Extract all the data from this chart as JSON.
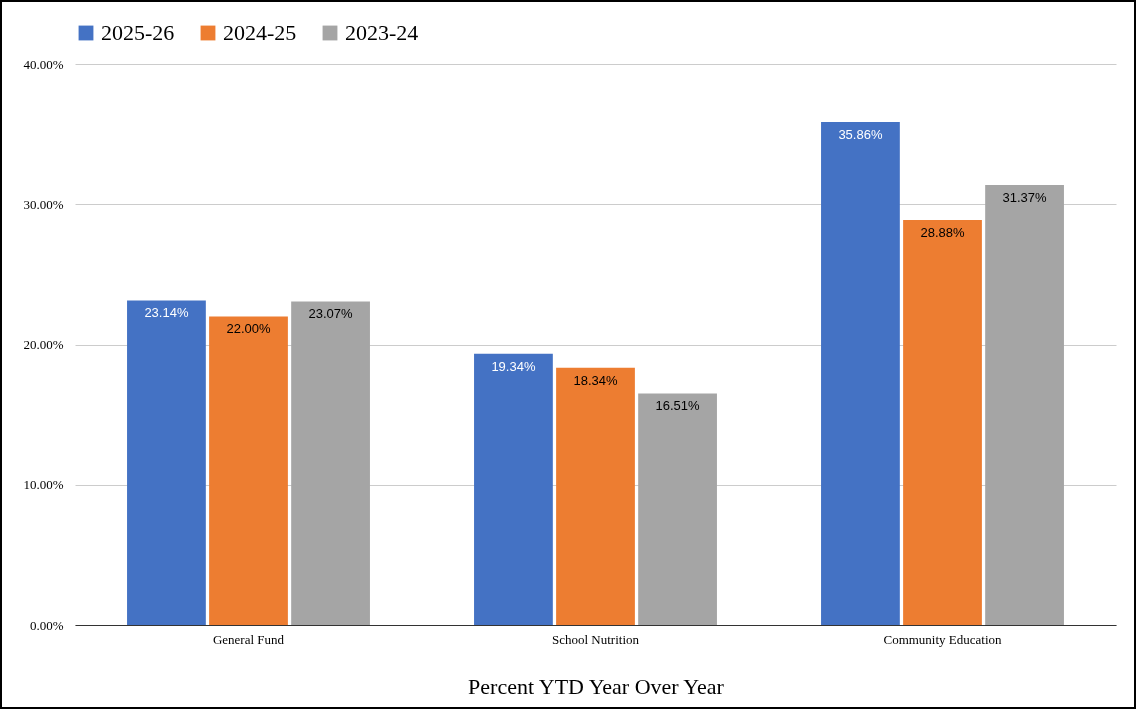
{
  "chart_data": {
    "type": "bar",
    "xlabel": "Percent YTD Year Over Year",
    "categories": [
      "General Fund",
      "School Nutrition",
      "Community Education"
    ],
    "series": [
      {
        "name": "2025-26",
        "color": "#4472c4",
        "values": [
          23.14,
          19.34,
          35.86
        ],
        "value_labels": [
          "23.14%",
          "19.34%",
          "35.86%"
        ]
      },
      {
        "name": "2024-25",
        "color": "#ed7d31",
        "values": [
          22.0,
          18.34,
          28.88
        ],
        "value_labels": [
          "22.00%",
          "18.34%",
          "28.88%"
        ]
      },
      {
        "name": "2023-24",
        "color": "#a5a5a5",
        "values": [
          23.07,
          16.51,
          31.37
        ],
        "value_labels": [
          "23.07%",
          "16.51%",
          "31.37%"
        ]
      }
    ],
    "ylim": [
      0,
      40
    ],
    "yticks": [
      {
        "value": 0,
        "label": "0.00%"
      },
      {
        "value": 10,
        "label": "10.00%"
      },
      {
        "value": 20,
        "label": "20.00%"
      },
      {
        "value": 30,
        "label": "30.00%"
      },
      {
        "value": 40,
        "label": "40.00%"
      }
    ],
    "grid": "y",
    "legend": "top"
  }
}
